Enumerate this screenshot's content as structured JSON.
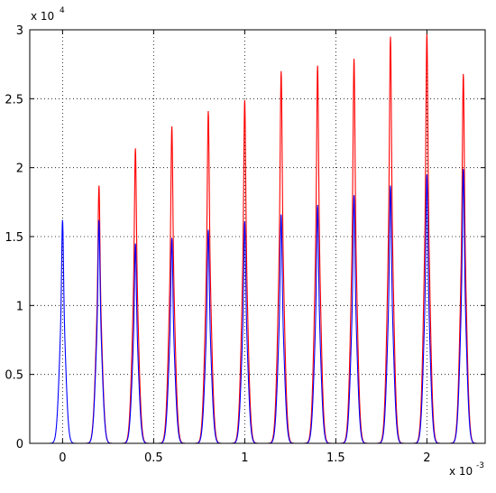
{
  "chart_data": {
    "type": "line",
    "xlim": [
      -0.00018,
      0.00232
    ],
    "ylim": [
      0,
      30000
    ],
    "x_ticks": [
      0,
      0.0005,
      0.001,
      0.0015,
      0.002
    ],
    "x_tick_labels": [
      "0",
      "0.5",
      "1",
      "1.5",
      "2"
    ],
    "y_ticks": [
      0,
      5000,
      10000,
      15000,
      20000,
      25000,
      30000
    ],
    "y_tick_labels": [
      "0",
      "0.5",
      "1",
      "1.5",
      "2",
      "2.5",
      "3"
    ],
    "x_multiplier": {
      "base": "x 10",
      "exponent": "-3"
    },
    "y_multiplier": {
      "base": "x 10",
      "exponent": "4"
    },
    "grid": true,
    "peak_centers": [
      0,
      0.0002,
      0.0004,
      0.0006,
      0.0008,
      0.001,
      0.0012,
      0.0014,
      0.0016,
      0.0018,
      0.002,
      0.0022
    ],
    "series": [
      {
        "color": "#ff0000",
        "peaks": [
          0,
          18700,
          21400,
          23000,
          24100,
          24900,
          27000,
          27400,
          27900,
          29500,
          29700,
          26800
        ]
      },
      {
        "color": "#0000ff",
        "peaks": [
          16200,
          16200,
          14500,
          14900,
          15500,
          16100,
          16600,
          17300,
          18000,
          18700,
          19500,
          19900
        ]
      }
    ]
  }
}
